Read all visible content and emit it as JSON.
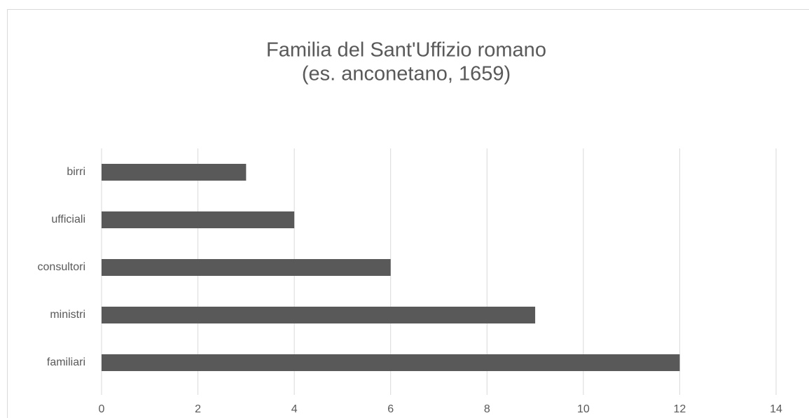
{
  "chart_data": {
    "type": "hbar",
    "title": "Familia del Sant'Uffizio romano",
    "subtitle": "(es. anconetano, 1659)",
    "categories": [
      "birri",
      "ufficiali",
      "consultori",
      "ministri",
      "familiari"
    ],
    "values": [
      3,
      4,
      6,
      9,
      12
    ],
    "color": "#595959",
    "xlim": [
      0,
      14
    ],
    "xticks": [
      0,
      2,
      4,
      6,
      8,
      10,
      12,
      14
    ],
    "grid": true
  }
}
